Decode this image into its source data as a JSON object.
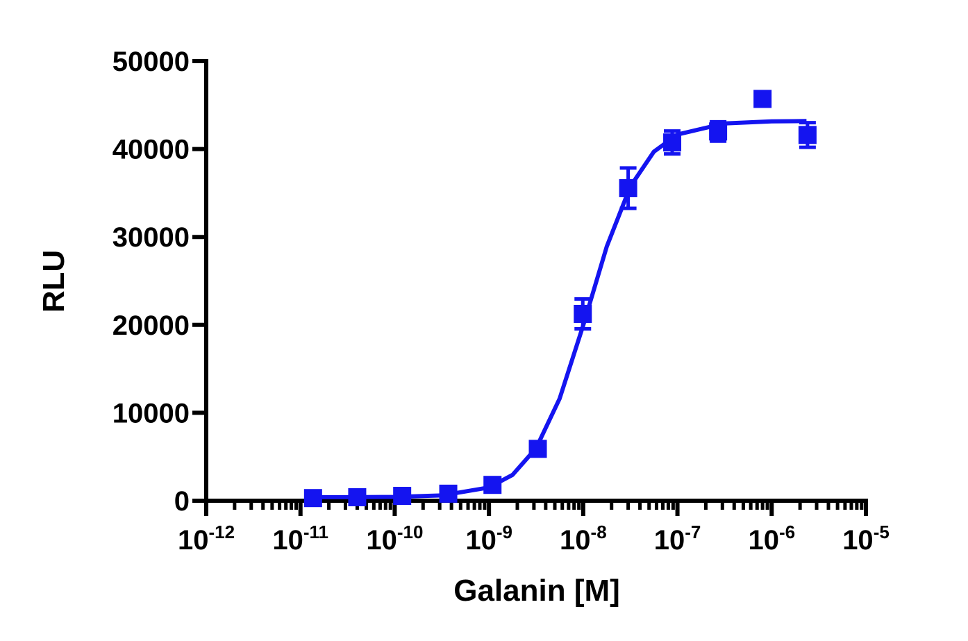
{
  "chart_data": {
    "type": "scatter",
    "x_label": "Galanin [M]",
    "y_label": "RLU",
    "x": [
      1.36e-11,
      4e-11,
      1.2e-10,
      3.7e-10,
      1.09e-09,
      3.3e-09,
      9.9e-09,
      3e-08,
      8.8e-08,
      2.7e-07,
      8e-07,
      2.4e-06
    ],
    "series": [
      {
        "color": "#1414f0",
        "values": [
          300,
          400,
          550,
          800,
          1800,
          5900,
          21250,
          35550,
          40750,
          42000,
          45700,
          41600
        ],
        "errors": [
          200,
          200,
          250,
          300,
          400,
          600,
          1700,
          2300,
          1300,
          1100,
          500,
          1400
        ]
      }
    ],
    "fit": {
      "color": "#1414f0",
      "x": [
        1.35e-11,
        3.16e-11,
        1e-10,
        3.16e-10,
        1e-09,
        1.78e-09,
        3.16e-09,
        5.62e-09,
        1e-08,
        1.78e-08,
        3.16e-08,
        5.62e-08,
        1e-07,
        3.16e-07,
        1e-06,
        2.34e-06
      ],
      "values": [
        402,
        406,
        436,
        602,
        1509,
        2940,
        5972,
        11610,
        19953,
        28912,
        35735,
        39698,
        41649,
        42916,
        43149,
        43186
      ]
    },
    "xscale": "log",
    "xlim": [
      1e-12,
      1e-05
    ],
    "xticks": [
      {
        "value": 1e-12,
        "label": "10",
        "sup": "-12"
      },
      {
        "value": 1e-11,
        "label": "10",
        "sup": "-11"
      },
      {
        "value": 1e-10,
        "label": "10",
        "sup": "-10"
      },
      {
        "value": 1e-09,
        "label": "10",
        "sup": "-9"
      },
      {
        "value": 1e-08,
        "label": "10",
        "sup": "-8"
      },
      {
        "value": 1e-07,
        "label": "10",
        "sup": "-7"
      },
      {
        "value": 1e-06,
        "label": "10",
        "sup": "-6"
      },
      {
        "value": 1e-05,
        "label": "10",
        "sup": "-5"
      }
    ],
    "xminorticks": [
      2e-12,
      3e-12,
      4e-12,
      5e-12,
      6e-12,
      7e-12,
      8e-12,
      9e-12,
      2e-11,
      3e-11,
      4e-11,
      5e-11,
      6e-11,
      7e-11,
      8e-11,
      9e-11,
      2e-10,
      3e-10,
      4e-10,
      5e-10,
      6e-10,
      7e-10,
      8e-10,
      9e-10,
      2e-09,
      3e-09,
      4e-09,
      5e-09,
      6e-09,
      7e-09,
      8e-09,
      9e-09,
      2e-08,
      3e-08,
      4e-08,
      5e-08,
      6e-08,
      7e-08,
      8e-08,
      9e-08,
      2e-07,
      3e-07,
      4e-07,
      5e-07,
      6e-07,
      7e-07,
      8e-07,
      9e-07,
      2e-06,
      3e-06,
      4e-06,
      5e-06,
      6e-06,
      7e-06,
      8e-06,
      9e-06
    ],
    "ylim": [
      0,
      50000
    ],
    "yticks": [
      0,
      10000,
      20000,
      30000,
      40000,
      50000
    ],
    "grid": false
  }
}
